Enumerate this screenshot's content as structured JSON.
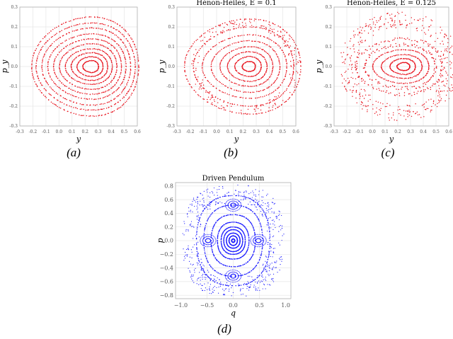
{
  "figure": {
    "caption_labels": [
      "a",
      "b",
      "c",
      "d"
    ]
  },
  "chart_data": [
    {
      "type": "scatter",
      "title": "",
      "xlabel": "y",
      "ylabel": "p_y",
      "xlim": [
        -0.3,
        0.6
      ],
      "ylim": [
        -0.3,
        0.3
      ],
      "xticks": [
        -0.3,
        -0.2,
        -0.1,
        0.0,
        0.1,
        0.2,
        0.3,
        0.4,
        0.5,
        0.6
      ],
      "yticks": [
        -0.3,
        -0.2,
        -0.1,
        0.0,
        0.1,
        0.2,
        0.3
      ],
      "grid": true,
      "marker_color": "#e8141e",
      "series": [
        {
          "rx": 0.06,
          "ry": 0.03
        },
        {
          "rx": 0.1,
          "ry": 0.05
        },
        {
          "rx": 0.14,
          "ry": 0.07
        },
        {
          "rx": 0.18,
          "ry": 0.09
        },
        {
          "rx": 0.22,
          "ry": 0.115
        },
        {
          "rx": 0.26,
          "ry": 0.14
        },
        {
          "rx": 0.3,
          "ry": 0.165
        },
        {
          "rx": 0.34,
          "ry": 0.195
        },
        {
          "rx": 0.38,
          "ry": 0.22
        },
        {
          "rx": 0.41,
          "ry": 0.25
        }
      ]
    },
    {
      "type": "scatter",
      "title": "Hénon-Heiles, E = 0.1",
      "xlabel": "y",
      "ylabel": "p_y",
      "xlim": [
        -0.3,
        0.6
      ],
      "ylim": [
        -0.3,
        0.3
      ],
      "xticks": [
        -0.3,
        -0.2,
        -0.1,
        0.0,
        0.1,
        0.2,
        0.3,
        0.4,
        0.5,
        0.6
      ],
      "yticks": [
        -0.3,
        -0.2,
        -0.1,
        0.0,
        0.1,
        0.2,
        0.3
      ],
      "grid": true,
      "marker_color": "#e8141e",
      "series": [
        {
          "rx": 0.05,
          "ry": 0.025
        },
        {
          "rx": 0.1,
          "ry": 0.05
        },
        {
          "rx": 0.15,
          "ry": 0.075
        },
        {
          "rx": 0.2,
          "ry": 0.1
        },
        {
          "rx": 0.26,
          "ry": 0.13
        },
        {
          "rx": 0.32,
          "ry": 0.16
        },
        {
          "rx": 0.38,
          "ry": 0.2
        },
        {
          "rx": 0.44,
          "ry": 0.24
        }
      ]
    },
    {
      "type": "scatter",
      "title": "Hénon-Heiles, E = 0.125",
      "xlabel": "y",
      "ylabel": "p_y",
      "xlim": [
        -0.3,
        0.6
      ],
      "ylim": [
        -0.3,
        0.3
      ],
      "xticks": [
        -0.3,
        -0.2,
        -0.1,
        0.0,
        0.1,
        0.2,
        0.3,
        0.4,
        0.5,
        0.6
      ],
      "yticks": [
        -0.3,
        -0.2,
        -0.1,
        0.0,
        0.1,
        0.2,
        0.3
      ],
      "grid": true,
      "marker_color": "#e8141e",
      "series": [
        {
          "rx": 0.05,
          "ry": 0.02
        },
        {
          "rx": 0.1,
          "ry": 0.04
        },
        {
          "rx": 0.16,
          "ry": 0.06
        },
        {
          "rx": 0.22,
          "ry": 0.085
        },
        {
          "rx": 0.28,
          "ry": 0.11
        },
        {
          "rx": 0.34,
          "ry": 0.14
        }
      ]
    },
    {
      "type": "scatter",
      "title": "Driven Pendulum",
      "xlabel": "q",
      "ylabel": "p",
      "xlim": [
        -1.1,
        1.1
      ],
      "ylim": [
        -0.85,
        0.85
      ],
      "xticks": [
        -1.0,
        -0.5,
        0.0,
        0.5,
        1.0
      ],
      "xtick_labels": [
        "−1.0",
        "−0.5",
        "0.0",
        "0.5",
        "1.0"
      ],
      "yticks": [
        -0.8,
        -0.6,
        -0.4,
        -0.2,
        0.0,
        0.2,
        0.4,
        0.6,
        0.8
      ],
      "ytick_labels": [
        "−0.8",
        "−0.6",
        "−0.4",
        "−0.2",
        "0.0",
        "0.2",
        "0.4",
        "0.6",
        "0.8"
      ],
      "grid": true,
      "marker_color": "#1a1aff",
      "series": [
        {
          "rx": 0.03,
          "ry": 0.025
        },
        {
          "rx": 0.08,
          "ry": 0.07
        },
        {
          "rx": 0.13,
          "ry": 0.11
        },
        {
          "rx": 0.18,
          "ry": 0.16
        },
        {
          "rx": 0.23,
          "ry": 0.2
        },
        {
          "rx": 0.3,
          "ry": 0.27
        },
        {
          "rx": 0.42,
          "ry": 0.38
        },
        {
          "rx": 0.56,
          "ry": 0.52
        },
        {
          "rx": 0.7,
          "ry": 0.66
        }
      ]
    }
  ]
}
